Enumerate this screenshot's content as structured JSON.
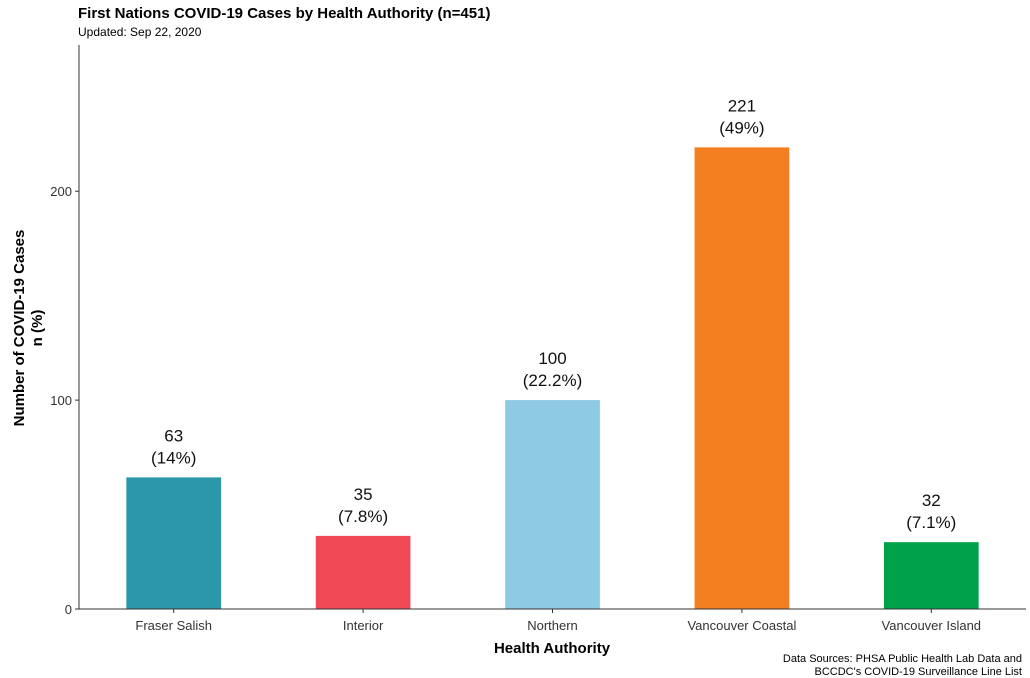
{
  "title": "First Nations COVID-19 Cases by Health Authority (n=451)",
  "subtitle": "Updated: Sep 22, 2020",
  "source_lines": [
    "Data Sources: PHSA Public Health Lab Data and",
    "BCCDC's COVID-19 Surveillance Line List"
  ],
  "chart_data": {
    "type": "bar",
    "title": "First Nations COVID-19 Cases by Health Authority (n=451)",
    "subtitle": "Updated: Sep 22, 2020",
    "xlabel": "Health Authority",
    "ylabel_lines": [
      "Number of COVID-19 Cases",
      "n (%)"
    ],
    "categories": [
      "Fraser Salish",
      "Interior",
      "Northern",
      "Vancouver Coastal",
      "Vancouver Island"
    ],
    "values": [
      63,
      35,
      100,
      221,
      32
    ],
    "percent_labels": [
      "(14%)",
      "(7.8%)",
      "(22.2%)",
      "(49%)",
      "(7.1%)"
    ],
    "colors": [
      "#2b97a8",
      "#ef4a55",
      "#8ecae3",
      "#f47f20",
      "#00a14b"
    ],
    "yticks": [
      0,
      100,
      200
    ],
    "ylim": [
      0,
      270
    ],
    "grid": false,
    "legend": "none"
  }
}
